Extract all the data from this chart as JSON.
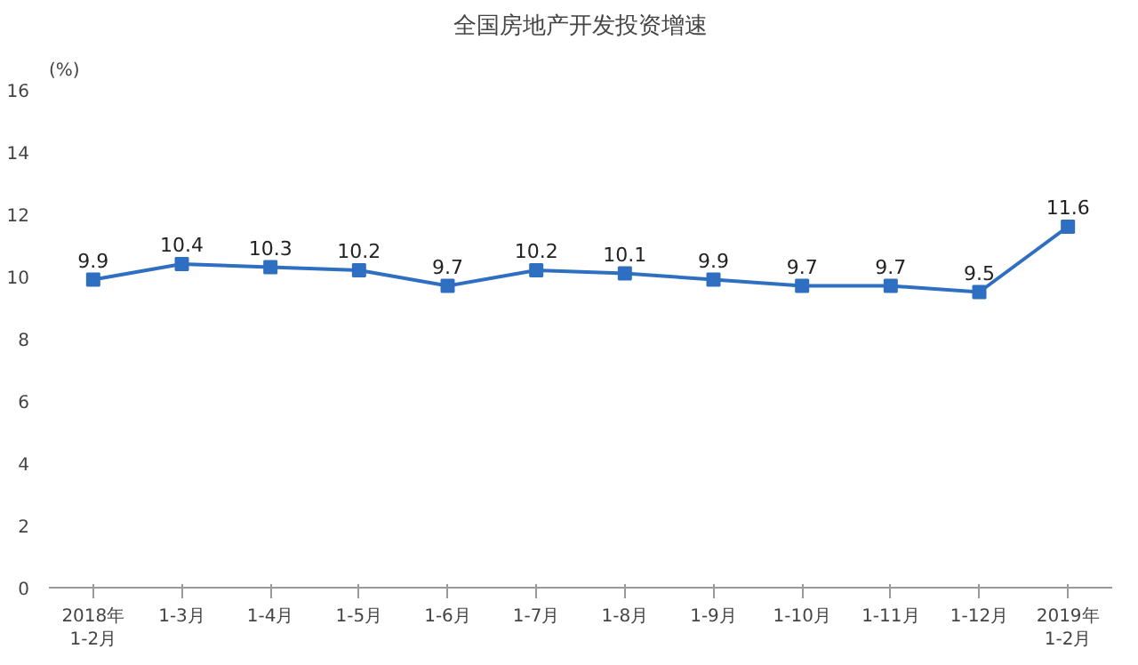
{
  "chart_data": {
    "type": "line",
    "title": "全国房地产开发投资增速",
    "ylabel": "(%)",
    "categories": [
      "2018年\n1-2月",
      "1-3月",
      "1-4月",
      "1-5月",
      "1-6月",
      "1-7月",
      "1-8月",
      "1-9月",
      "1-10月",
      "1-11月",
      "1-12月",
      "2019年\n1-2月"
    ],
    "series": [
      {
        "color": "#2f6fc2",
        "values": [
          9.9,
          10.4,
          10.3,
          10.2,
          9.7,
          10.2,
          10.1,
          9.9,
          9.7,
          9.7,
          9.5,
          11.6
        ]
      }
    ],
    "ylim": [
      0,
      16
    ],
    "yticks": [
      0,
      2,
      4,
      6,
      8,
      10,
      12,
      14,
      16
    ],
    "data_labels": true,
    "marker": "square",
    "line_style": "solid"
  }
}
